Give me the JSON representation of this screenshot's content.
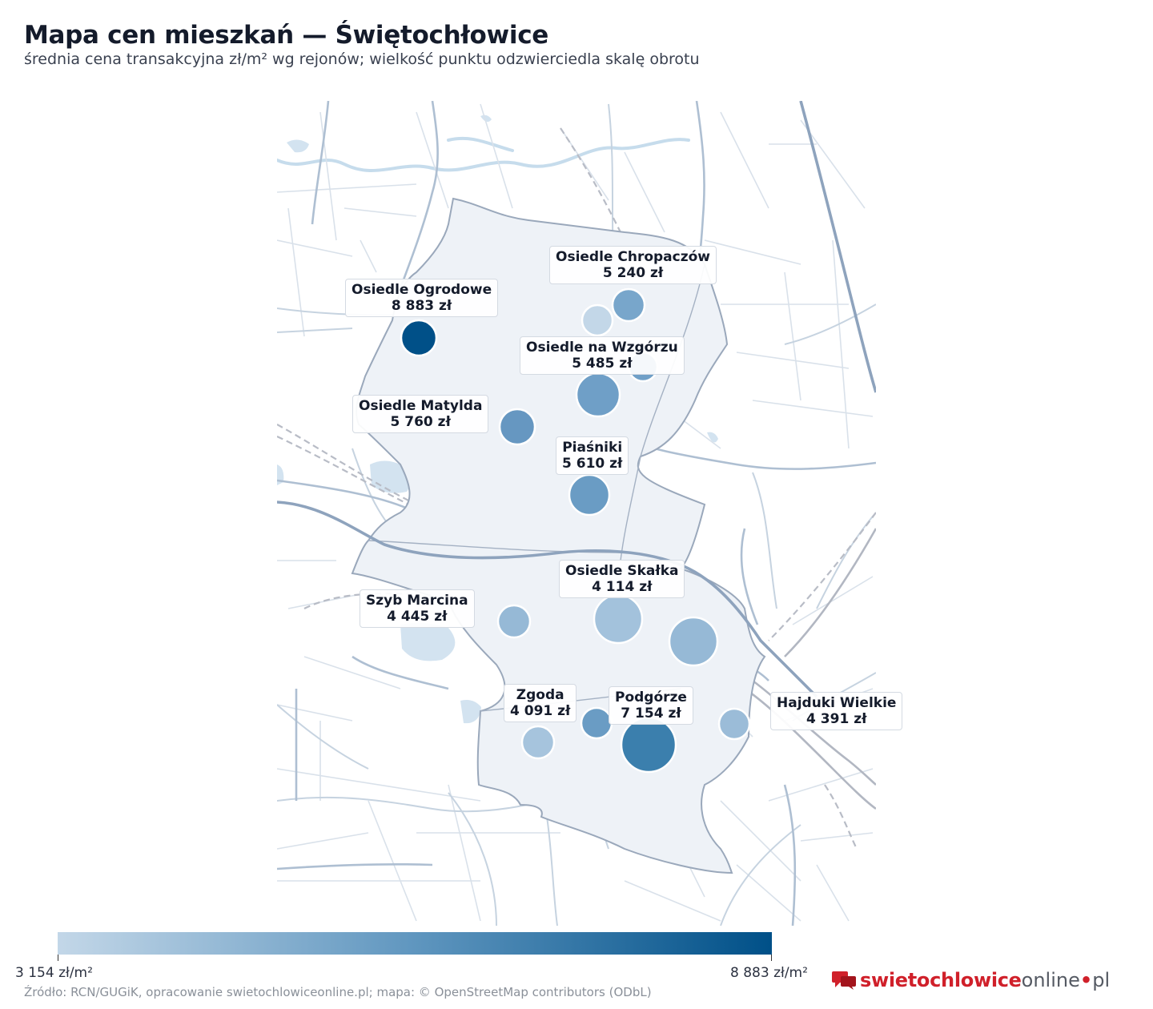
{
  "header": {
    "title": "Mapa cen mieszkań — Świętochłowice",
    "subtitle": "średnia cena transakcyjna zł/m² wg rejonów; wielkość punktu odzwierciedla skalę obrotu"
  },
  "districts": [
    {
      "name": "Osiedle Chropaczów",
      "price": "5 240 zł",
      "value": 5240
    },
    {
      "name": "Osiedle Ogrodowe",
      "price": "8 883 zł",
      "value": 8883
    },
    {
      "name": "Osiedle na Wzgórzu",
      "price": "5 485 zł",
      "value": 5485
    },
    {
      "name": "Osiedle Matylda",
      "price": "5 760 zł",
      "value": 5760
    },
    {
      "name": "Piaśniki",
      "price": "5 610 zł",
      "value": 5610
    },
    {
      "name": "Osiedle Skałka",
      "price": "4 114 zł",
      "value": 4114
    },
    {
      "name": "Szyb Marcina",
      "price": "4 445 zł",
      "value": 4445
    },
    {
      "name": "Zgoda",
      "price": "4 091 zł",
      "value": 4091
    },
    {
      "name": "Podgórze",
      "price": "7 154 zł",
      "value": 7154
    },
    {
      "name": "Hajduki Wielkie",
      "price": "4 391 zł",
      "value": 4391
    }
  ],
  "legend": {
    "min_label": "3 154 zł/m²",
    "max_label": "8 883 zł/m²",
    "min_value": 3154,
    "max_value": 8883,
    "color_low": "#c3d7e8",
    "color_high": "#005088"
  },
  "footer": {
    "source": "Źródło: RCN/GUGiK, opracowanie swietochlowiceonline.pl; mapa: © OpenStreetMap contributors (ODbL)",
    "logo_red": "swietochlowice",
    "logo_grey": "online",
    "logo_dot": "•",
    "logo_tld": "pl"
  }
}
